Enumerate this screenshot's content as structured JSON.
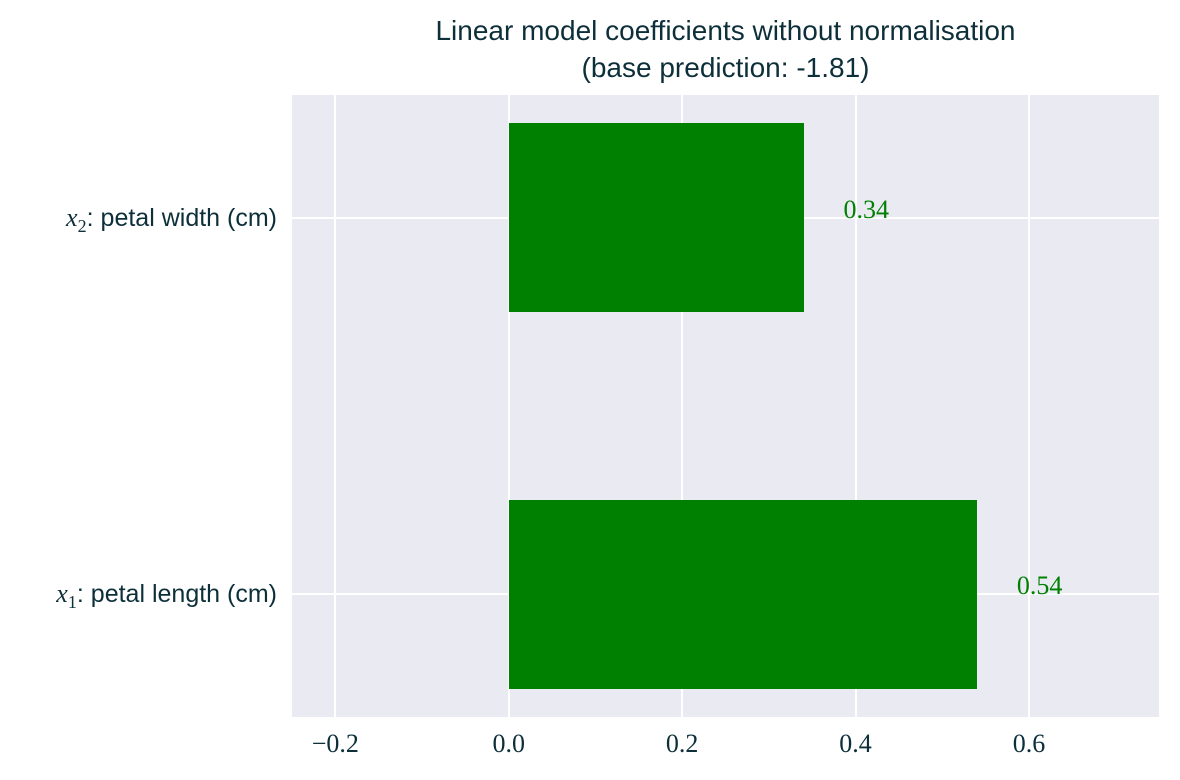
{
  "chart_data": {
    "type": "bar",
    "orientation": "horizontal",
    "title": "Linear model coefficients without normalisation",
    "subtitle": "(base prediction: -1.81)",
    "categories": [
      "x2: petal width (cm)",
      "x1: petal length (cm)"
    ],
    "series": [
      {
        "id": "x2-petal-width",
        "category_parts": {
          "var": "x",
          "sub": "2",
          "sep": ":",
          "text": "petal width (cm)"
        },
        "value": 0.34,
        "value_label": "0.34",
        "y_center": 1
      },
      {
        "id": "x1-petal-length",
        "category_parts": {
          "var": "x",
          "sub": "1",
          "sep": ":",
          "text": "petal length (cm)"
        },
        "value": 0.54,
        "value_label": "0.54",
        "y_center": 0
      }
    ],
    "xticks": [
      -0.2,
      0.0,
      0.2,
      0.4,
      0.6
    ],
    "xtick_labels": [
      "−0.2",
      "0.0",
      "0.2",
      "0.4",
      "0.6"
    ],
    "xlim": [
      -0.25,
      0.75
    ],
    "ylim": [
      -0.325,
      1.325
    ],
    "bar_height": 0.5,
    "grid": true,
    "legend": "none",
    "colors": {
      "bar": "#008000",
      "value_label": "#008000",
      "text": "#0d2f3a",
      "plot_background": "#e9eaf2",
      "gridline": "#ffffff",
      "figure_background": "#ffffff"
    }
  }
}
